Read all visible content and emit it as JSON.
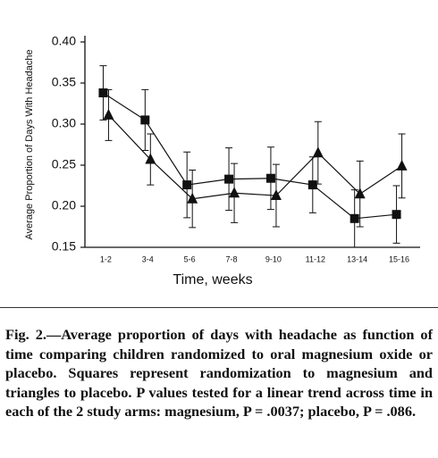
{
  "chart_data": {
    "type": "line",
    "ylabel": "Average Proportion of Days With Headache",
    "xlabel": "Time, weeks",
    "categories": [
      "1-2",
      "3-4",
      "5-6",
      "7-8",
      "9-10",
      "11-12",
      "13-14",
      "15-16"
    ],
    "series": [
      {
        "color": "#111111",
        "marker": "square",
        "values": [
          0.338,
          0.305,
          0.226,
          0.233,
          0.234,
          0.226,
          0.185,
          0.19
        ],
        "errors": [
          0.033,
          0.037,
          0.04,
          0.038,
          0.038,
          0.034,
          0.035,
          0.035
        ]
      },
      {
        "color": "#111111",
        "marker": "triangle",
        "values": [
          0.311,
          0.257,
          0.209,
          0.216,
          0.213,
          0.265,
          0.215,
          0.249
        ],
        "errors": [
          0.031,
          0.031,
          0.035,
          0.036,
          0.038,
          0.038,
          0.04,
          0.039
        ]
      }
    ],
    "ylim": [
      0.15,
      0.4
    ],
    "yticks": [
      {
        "value": 0.15,
        "label": "0.15"
      },
      {
        "value": 0.2,
        "label": "0.20"
      },
      0.25,
      {
        "value": 0.3,
        "label": "0.30"
      },
      0.35,
      {
        "value": 0.4,
        "label": "0.40"
      }
    ],
    "grid": false,
    "caption": "Fig. 2.—Average proportion of days with headache as function of time comparing children randomized to oral magnesium oxide or placebo. Squares represent randomization to magnesium and triangles to placebo. P values tested for a linear trend across time in each of the 2 study arms: magnesium, P = .0037; placebo, P = .086."
  }
}
